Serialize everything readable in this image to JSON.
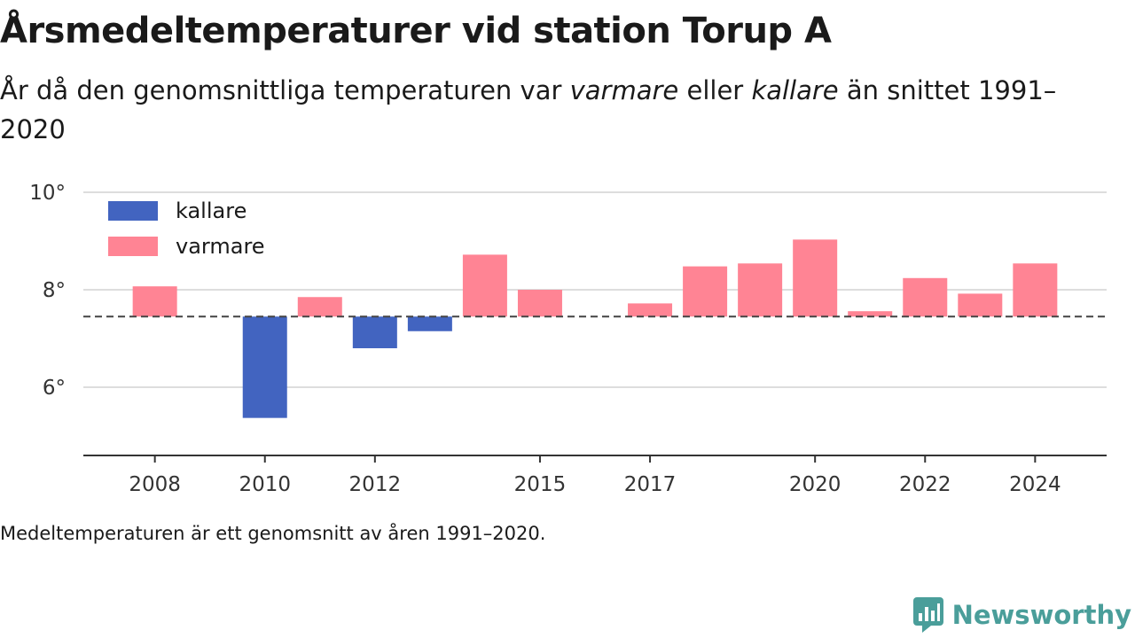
{
  "header": {
    "title": "Årsmedeltemperaturer vid station Torup A",
    "subtitle_parts": [
      {
        "text": "År då den genomsnittliga temperaturen var ",
        "italic": false
      },
      {
        "text": "varmare",
        "italic": true
      },
      {
        "text": " eller ",
        "italic": false
      },
      {
        "text": "kallare",
        "italic": true
      },
      {
        "text": " än snittet 1991–2020",
        "italic": false
      }
    ]
  },
  "footnote": "Medeltemperaturen är ett genomsnitt av åren 1991–2020.",
  "brand": {
    "name": "Newsworthy",
    "icon": "newsworthy-logo-icon",
    "color": "#4a9e9a"
  },
  "chart_data": {
    "type": "bar",
    "baseline": 7.45,
    "ylim": [
      4.6,
      10.0
    ],
    "y_ticks": [
      6,
      8,
      10
    ],
    "y_tick_suffix": "°",
    "x_ticks": [
      2008,
      2010,
      2012,
      2015,
      2017,
      2020,
      2022,
      2024
    ],
    "xlim": [
      2006.7,
      2025.3
    ],
    "grid": true,
    "legend_position": "top-left",
    "series": [
      {
        "name": "kallare",
        "color": "#4264c0"
      },
      {
        "name": "varmare",
        "color": "#ff8494"
      }
    ],
    "bars": [
      {
        "year": 2008,
        "value": 8.07
      },
      {
        "year": 2010,
        "value": 5.37
      },
      {
        "year": 2011,
        "value": 7.85
      },
      {
        "year": 2012,
        "value": 6.8
      },
      {
        "year": 2013,
        "value": 7.15
      },
      {
        "year": 2014,
        "value": 8.72
      },
      {
        "year": 2015,
        "value": 8.0
      },
      {
        "year": 2017,
        "value": 7.72
      },
      {
        "year": 2018,
        "value": 8.48
      },
      {
        "year": 2019,
        "value": 8.54
      },
      {
        "year": 2020,
        "value": 9.03
      },
      {
        "year": 2021,
        "value": 7.56
      },
      {
        "year": 2022,
        "value": 8.24
      },
      {
        "year": 2023,
        "value": 7.92
      },
      {
        "year": 2024,
        "value": 8.54
      }
    ]
  }
}
